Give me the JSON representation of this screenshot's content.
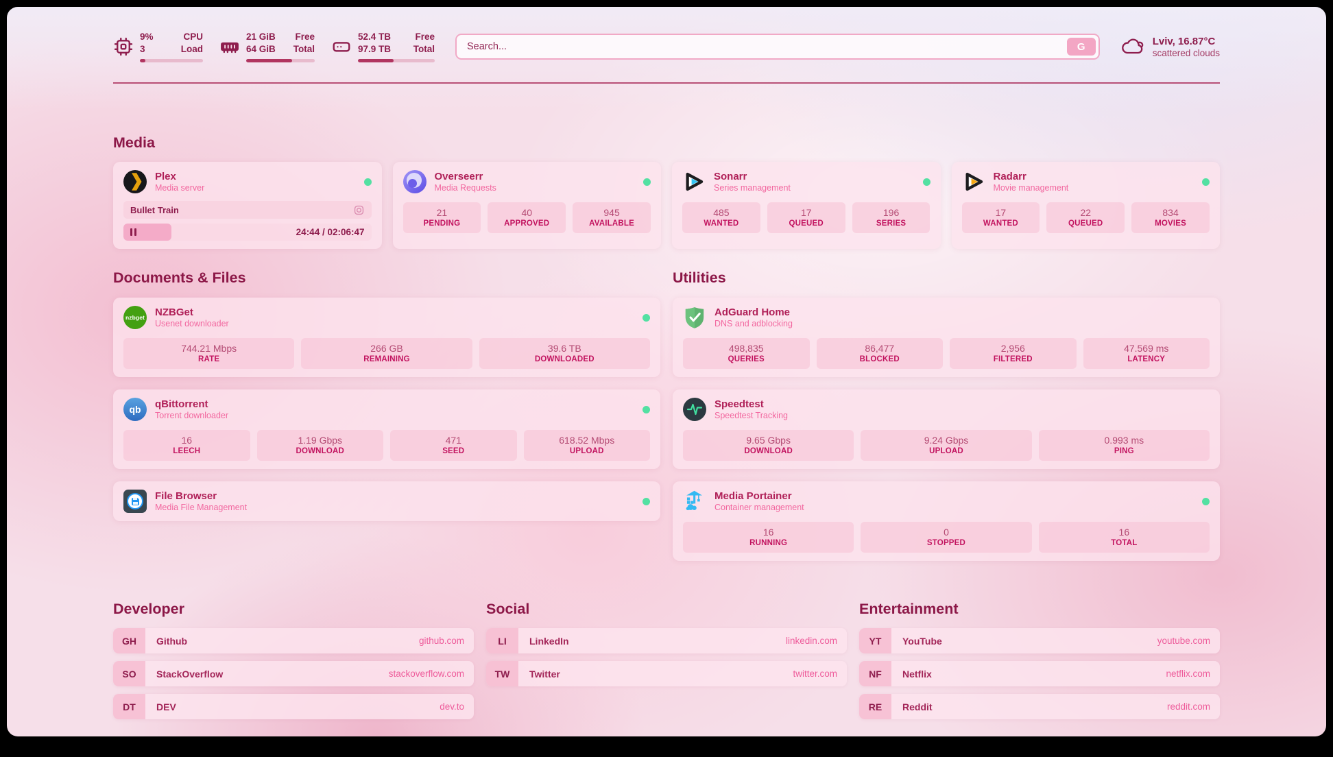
{
  "topbar": {
    "cpu": {
      "value": "9%",
      "load": "3",
      "label_top": "CPU",
      "label_bottom": "Load",
      "used_percent": 9
    },
    "memory": {
      "free": "21 GiB",
      "total": "64 GiB",
      "label_top": "Free",
      "label_bottom": "Total",
      "used_percent": 67
    },
    "disk": {
      "free": "52.4 TB",
      "total": "97.9 TB",
      "label_top": "Free",
      "label_bottom": "Total",
      "used_percent": 46
    },
    "search": {
      "placeholder": "Search...",
      "button_label": "G"
    },
    "weather": {
      "location": "Lviv, 16.87°C",
      "condition": "scattered clouds"
    }
  },
  "media": {
    "title": "Media",
    "plex": {
      "name": "Plex",
      "subtitle": "Media server",
      "now_playing": "Bullet Train",
      "time": "24:44 / 02:06:47",
      "progress_percent": 19.5,
      "status": "online"
    },
    "overseerr": {
      "name": "Overseerr",
      "subtitle": "Media Requests",
      "status": "online",
      "stats": [
        {
          "value": "21",
          "label": "PENDING"
        },
        {
          "value": "40",
          "label": "APPROVED"
        },
        {
          "value": "945",
          "label": "AVAILABLE"
        }
      ]
    },
    "sonarr": {
      "name": "Sonarr",
      "subtitle": "Series management",
      "status": "online",
      "stats": [
        {
          "value": "485",
          "label": "WANTED"
        },
        {
          "value": "17",
          "label": "QUEUED"
        },
        {
          "value": "196",
          "label": "SERIES"
        }
      ]
    },
    "radarr": {
      "name": "Radarr",
      "subtitle": "Movie management",
      "status": "online",
      "stats": [
        {
          "value": "17",
          "label": "WANTED"
        },
        {
          "value": "22",
          "label": "QUEUED"
        },
        {
          "value": "834",
          "label": "MOVIES"
        }
      ]
    }
  },
  "documents": {
    "title": "Documents & Files",
    "nzbget": {
      "name": "NZBGet",
      "subtitle": "Usenet downloader",
      "icon_text": "nzbget",
      "status": "online",
      "stats": [
        {
          "value": "744.21 Mbps",
          "label": "RATE"
        },
        {
          "value": "266 GB",
          "label": "REMAINING"
        },
        {
          "value": "39.6 TB",
          "label": "DOWNLOADED"
        }
      ]
    },
    "qbittorrent": {
      "name": "qBittorrent",
      "subtitle": "Torrent downloader",
      "icon_text": "qb",
      "status": "online",
      "stats": [
        {
          "value": "16",
          "label": "LEECH"
        },
        {
          "value": "1.19 Gbps",
          "label": "DOWNLOAD"
        },
        {
          "value": "471",
          "label": "SEED"
        },
        {
          "value": "618.52 Mbps",
          "label": "UPLOAD"
        }
      ]
    },
    "filebrowser": {
      "name": "File Browser",
      "subtitle": "Media File Management",
      "status": "online"
    }
  },
  "utilities": {
    "title": "Utilities",
    "adguard": {
      "name": "AdGuard Home",
      "subtitle": "DNS and adblocking",
      "stats": [
        {
          "value": "498,835",
          "label": "QUERIES"
        },
        {
          "value": "86,477",
          "label": "BLOCKED"
        },
        {
          "value": "2,956",
          "label": "FILTERED"
        },
        {
          "value": "47.569 ms",
          "label": "LATENCY"
        }
      ]
    },
    "speedtest": {
      "name": "Speedtest",
      "subtitle": "Speedtest Tracking",
      "stats": [
        {
          "value": "9.65 Gbps",
          "label": "DOWNLOAD"
        },
        {
          "value": "9.24 Gbps",
          "label": "UPLOAD"
        },
        {
          "value": "0.993 ms",
          "label": "PING"
        }
      ]
    },
    "portainer": {
      "name": "Media Portainer",
      "subtitle": "Container management",
      "status": "online",
      "stats": [
        {
          "value": "16",
          "label": "RUNNING"
        },
        {
          "value": "0",
          "label": "STOPPED"
        },
        {
          "value": "16",
          "label": "TOTAL"
        }
      ]
    }
  },
  "bookmarks": {
    "developer": {
      "title": "Developer",
      "items": [
        {
          "abbr": "GH",
          "name": "Github",
          "url": "github.com"
        },
        {
          "abbr": "SO",
          "name": "StackOverflow",
          "url": "stackoverflow.com"
        },
        {
          "abbr": "DT",
          "name": "DEV",
          "url": "dev.to"
        }
      ]
    },
    "social": {
      "title": "Social",
      "items": [
        {
          "abbr": "LI",
          "name": "LinkedIn",
          "url": "linkedin.com"
        },
        {
          "abbr": "TW",
          "name": "Twitter",
          "url": "twitter.com"
        }
      ]
    },
    "entertainment": {
      "title": "Entertainment",
      "items": [
        {
          "abbr": "YT",
          "name": "YouTube",
          "url": "youtube.com"
        },
        {
          "abbr": "NF",
          "name": "Netflix",
          "url": "netflix.com"
        },
        {
          "abbr": "RE",
          "name": "Reddit",
          "url": "reddit.com"
        }
      ]
    }
  },
  "colors": {
    "accent": "#8e1d4d",
    "subtitle_pink": "#f2679f",
    "stat_label_pink": "#c2135f",
    "status_online_green": "#53e0a2"
  }
}
